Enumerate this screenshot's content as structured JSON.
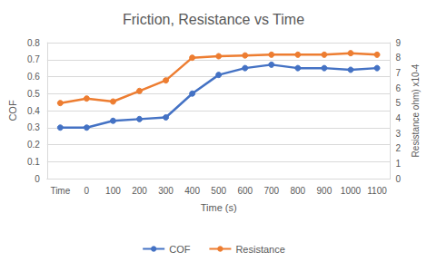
{
  "chart_data": {
    "type": "line",
    "title": "Friction, Resistance vs Time",
    "x_label": "Time (s)",
    "y_label": "COF",
    "y2_label": "Resistance ohm) x10-4",
    "categories": [
      "Time",
      "0",
      "100",
      "200",
      "300",
      "400",
      "500",
      "600",
      "700",
      "800",
      "900",
      "1000",
      "1100"
    ],
    "series": [
      {
        "name": "COF",
        "color": "#4472c4",
        "marker": "circle",
        "values": [
          0.3,
          0.3,
          0.34,
          0.35,
          0.36,
          0.5,
          0.61,
          0.65,
          0.67,
          0.65,
          0.65,
          0.64,
          0.65
        ]
      },
      {
        "name": "Resistance",
        "color": "#ed7d31",
        "marker": "circle",
        "axis": "y2",
        "values": [
          5.0,
          5.3,
          5.1,
          5.8,
          6.5,
          8.0,
          8.1,
          8.15,
          8.2,
          8.2,
          8.2,
          8.3,
          8.2
        ]
      }
    ],
    "ylim": [
      0,
      0.8
    ],
    "yticks": [
      0,
      0.1,
      0.2,
      0.3,
      0.4,
      0.5,
      0.6,
      0.7,
      0.8
    ],
    "y2lim": [
      0,
      9
    ],
    "y2ticks": [
      0,
      1,
      2,
      3,
      4,
      5,
      6,
      7,
      8,
      9
    ],
    "grid": true,
    "legend": "bottom"
  }
}
